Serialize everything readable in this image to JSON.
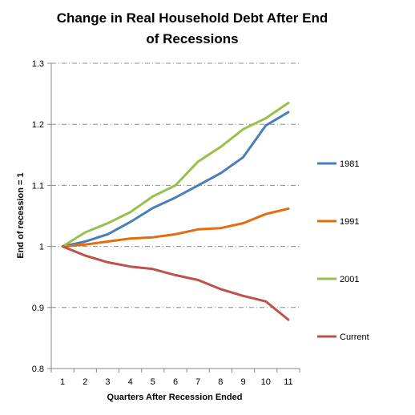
{
  "chart_data": {
    "type": "line",
    "title": "Change in Real Household  Debt After End of Recessions",
    "title_lines": [
      "Change in Real Household  Debt After End",
      "of Recessions"
    ],
    "xlabel": "Quarters After Recession  Ended",
    "ylabel": "End of recession = 1",
    "x": [
      1,
      2,
      3,
      4,
      5,
      6,
      7,
      8,
      9,
      10,
      11
    ],
    "x_tick_labels": [
      "1",
      "2",
      "3",
      "4",
      "5",
      "6",
      "7",
      "8",
      "9",
      "10",
      "11"
    ],
    "ylim": [
      0.8,
      1.3
    ],
    "y_tick_labels": [
      "0.8",
      "0.9",
      "1",
      "1.1",
      "1.2",
      "1.3"
    ],
    "y_ticks": [
      0.8,
      0.9,
      1.0,
      1.1,
      1.2,
      1.3
    ],
    "grid": "horizontal dash-dot",
    "legend_position": "right",
    "series": [
      {
        "name": "1981",
        "color": "#4a7ebb",
        "values": [
          1.0,
          1.008,
          1.02,
          1.04,
          1.063,
          1.08,
          1.1,
          1.12,
          1.146,
          1.198,
          1.22
        ]
      },
      {
        "name": "1991",
        "color": "#e46c0a",
        "values": [
          1.0,
          1.003,
          1.008,
          1.013,
          1.015,
          1.02,
          1.028,
          1.03,
          1.038,
          1.053,
          1.062
        ]
      },
      {
        "name": "2001",
        "color": "#98c04c",
        "values": [
          1.0,
          1.023,
          1.038,
          1.056,
          1.082,
          1.1,
          1.139,
          1.163,
          1.192,
          1.21,
          1.235
        ]
      },
      {
        "name": "Current",
        "color": "#c0504d",
        "values": [
          1.0,
          0.985,
          0.974,
          0.967,
          0.963,
          0.953,
          0.945,
          0.93,
          0.919,
          0.91,
          0.88
        ]
      }
    ]
  }
}
